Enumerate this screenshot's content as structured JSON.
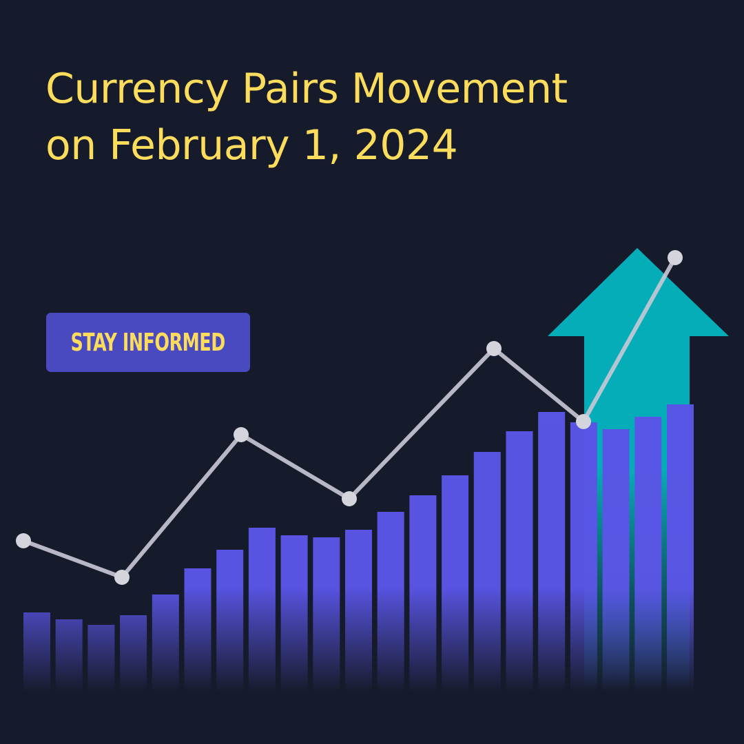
{
  "title": {
    "line1": "Currency Pairs Movement",
    "line2": "on February 1, 2024"
  },
  "badge": {
    "label": "STAY INFORMED"
  },
  "colors": {
    "background": "#161b2b",
    "title": "#fcdc5d",
    "badge": "#4a4ac0",
    "bars": "#5a55e6",
    "arrow": "#05adb8",
    "line": "#c9c9d6"
  },
  "icons": {
    "arrow": "up-arrow-icon"
  },
  "chart_data": {
    "type": "bar",
    "values": [
      116,
      106,
      98,
      112,
      142,
      180,
      207,
      239,
      228,
      225,
      236,
      262,
      286,
      315,
      349,
      379,
      407,
      392,
      382,
      400,
      418
    ],
    "line_series": {
      "values": [
        220,
        167,
        374,
        281,
        499,
        393,
        631
      ]
    },
    "grid": false,
    "legend": "none"
  }
}
